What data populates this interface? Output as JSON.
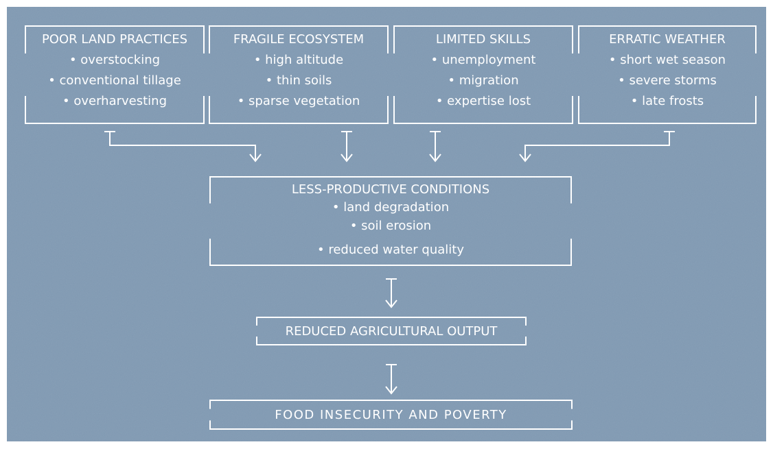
{
  "nodes": [
    {
      "title": "POOR LAND PRACTICES",
      "items": [
        "• overstocking",
        "• conventional tillage",
        "• overharvesting"
      ]
    },
    {
      "title": "FRAGILE ECOSYSTEM",
      "items": [
        "• high altitude",
        "• thin soils",
        "• sparse vegetation"
      ]
    },
    {
      "title": "LIMITED SKILLS",
      "items": [
        "• unemployment",
        "• migration",
        "• expertise lost"
      ]
    },
    {
      "title": "ERRATIC WEATHER",
      "items": [
        "• short wet season",
        "• severe storms",
        "• late frosts"
      ]
    },
    {
      "title": "LESS-PRODUCTIVE CONDITIONS",
      "items": [
        "• land degradation",
        "• soil erosion",
        "• reduced water quality"
      ]
    },
    {
      "title": "REDUCED AGRICULTURAL OUTPUT",
      "items": []
    },
    {
      "title": "FOOD INSECURITY AND POVERTY",
      "items": []
    }
  ]
}
